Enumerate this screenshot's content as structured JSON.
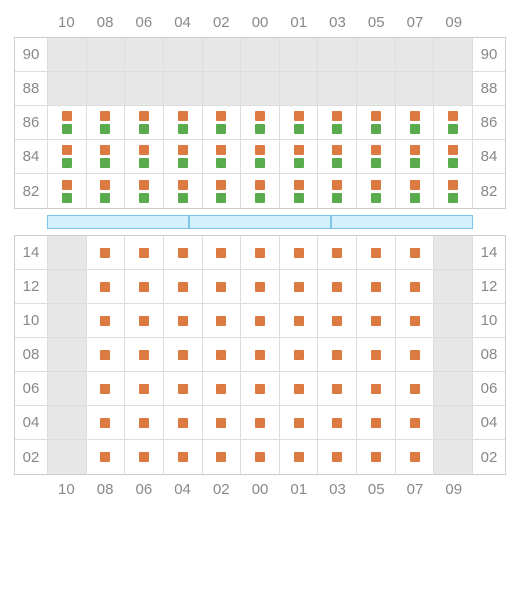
{
  "colors": {
    "orange": "#dd7a41",
    "green": "#5aab4e",
    "empty_bg": "#e7e7e7",
    "grid_border": "#ddd",
    "label_color": "#888",
    "bar_bg": "#d4f0fd",
    "bar_border": "#7ac7e8"
  },
  "columns": [
    "10",
    "08",
    "06",
    "04",
    "02",
    "00",
    "01",
    "03",
    "05",
    "07",
    "09"
  ],
  "top_section": {
    "rows": [
      {
        "label": "90",
        "cells": [
          "empty",
          "empty",
          "empty",
          "empty",
          "empty",
          "empty",
          "empty",
          "empty",
          "empty",
          "empty",
          "empty"
        ]
      },
      {
        "label": "88",
        "cells": [
          "empty",
          "empty",
          "empty",
          "empty",
          "empty",
          "empty",
          "empty",
          "empty",
          "empty",
          "empty",
          "empty"
        ]
      },
      {
        "label": "86",
        "cells": [
          "og",
          "og",
          "og",
          "og",
          "og",
          "og",
          "og",
          "og",
          "og",
          "og",
          "og"
        ]
      },
      {
        "label": "84",
        "cells": [
          "og",
          "og",
          "og",
          "og",
          "og",
          "og",
          "og",
          "og",
          "og",
          "og",
          "og"
        ]
      },
      {
        "label": "82",
        "cells": [
          "og",
          "og",
          "og",
          "og",
          "og",
          "og",
          "og",
          "og",
          "og",
          "og",
          "og"
        ]
      }
    ]
  },
  "middle_bar": {
    "segments": 3
  },
  "bottom_section": {
    "rows": [
      {
        "label": "14",
        "cells": [
          "empty",
          "o",
          "o",
          "o",
          "o",
          "o",
          "o",
          "o",
          "o",
          "o",
          "empty"
        ]
      },
      {
        "label": "12",
        "cells": [
          "empty",
          "o",
          "o",
          "o",
          "o",
          "o",
          "o",
          "o",
          "o",
          "o",
          "empty"
        ]
      },
      {
        "label": "10",
        "cells": [
          "empty",
          "o",
          "o",
          "o",
          "o",
          "o",
          "o",
          "o",
          "o",
          "o",
          "empty"
        ]
      },
      {
        "label": "08",
        "cells": [
          "empty",
          "o",
          "o",
          "o",
          "o",
          "o",
          "o",
          "o",
          "o",
          "o",
          "empty"
        ]
      },
      {
        "label": "06",
        "cells": [
          "empty",
          "o",
          "o",
          "o",
          "o",
          "o",
          "o",
          "o",
          "o",
          "o",
          "empty"
        ]
      },
      {
        "label": "04",
        "cells": [
          "empty",
          "o",
          "o",
          "o",
          "o",
          "o",
          "o",
          "o",
          "o",
          "o",
          "empty"
        ]
      },
      {
        "label": "02",
        "cells": [
          "empty",
          "o",
          "o",
          "o",
          "o",
          "o",
          "o",
          "o",
          "o",
          "o",
          "empty"
        ]
      }
    ]
  }
}
